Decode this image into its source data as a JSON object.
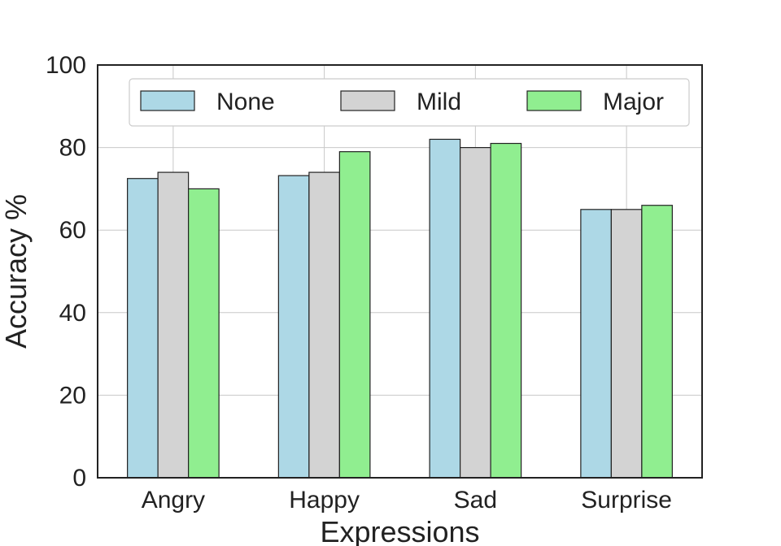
{
  "chart_data": {
    "type": "bar",
    "xlabel": "Expressions",
    "ylabel": "Accuracy %",
    "categories": [
      "Angry",
      "Happy",
      "Sad",
      "Surprise"
    ],
    "ylim": [
      0,
      100
    ],
    "yticks": [
      0,
      20,
      40,
      60,
      80,
      100
    ],
    "grid": true,
    "legend_position": "top",
    "series": [
      {
        "name": "None",
        "color": "#add8e6",
        "values": [
          72.5,
          73.2,
          82.0,
          65.0
        ]
      },
      {
        "name": "Mild",
        "color": "#d3d3d3",
        "values": [
          74.0,
          74.0,
          80.0,
          65.0
        ]
      },
      {
        "name": "Major",
        "color": "#90ee90",
        "values": [
          70.0,
          79.0,
          81.0,
          66.0
        ]
      }
    ]
  }
}
